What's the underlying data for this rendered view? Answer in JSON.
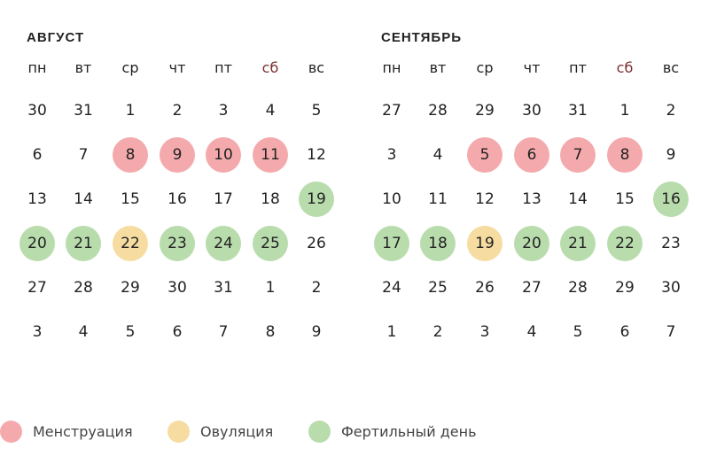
{
  "colors": {
    "menstruation": "#f4aaac",
    "ovulation": "#f6dca1",
    "fertile": "#b9dcad",
    "text": "#222222",
    "saturday": "#7a2e2e"
  },
  "weekdays": [
    "пн",
    "вт",
    "ср",
    "чт",
    "пт",
    "сб",
    "вс"
  ],
  "months": [
    {
      "title": "АВГУСТ",
      "weeks": [
        [
          {
            "d": "30"
          },
          {
            "d": "31"
          },
          {
            "d": "1"
          },
          {
            "d": "2"
          },
          {
            "d": "3"
          },
          {
            "d": "4"
          },
          {
            "d": "5"
          }
        ],
        [
          {
            "d": "6"
          },
          {
            "d": "7"
          },
          {
            "d": "8",
            "t": "menstruation"
          },
          {
            "d": "9",
            "t": "menstruation"
          },
          {
            "d": "10",
            "t": "menstruation"
          },
          {
            "d": "11",
            "t": "menstruation"
          },
          {
            "d": "12"
          }
        ],
        [
          {
            "d": "13"
          },
          {
            "d": "14"
          },
          {
            "d": "15"
          },
          {
            "d": "16"
          },
          {
            "d": "17"
          },
          {
            "d": "18"
          },
          {
            "d": "19",
            "t": "fertile"
          }
        ],
        [
          {
            "d": "20",
            "t": "fertile"
          },
          {
            "d": "21",
            "t": "fertile"
          },
          {
            "d": "22",
            "t": "ovulation"
          },
          {
            "d": "23",
            "t": "fertile"
          },
          {
            "d": "24",
            "t": "fertile"
          },
          {
            "d": "25",
            "t": "fertile"
          },
          {
            "d": "26"
          }
        ],
        [
          {
            "d": "27"
          },
          {
            "d": "28"
          },
          {
            "d": "29"
          },
          {
            "d": "30"
          },
          {
            "d": "31"
          },
          {
            "d": "1"
          },
          {
            "d": "2"
          }
        ],
        [
          {
            "d": "3"
          },
          {
            "d": "4"
          },
          {
            "d": "5"
          },
          {
            "d": "6"
          },
          {
            "d": "7"
          },
          {
            "d": "8"
          },
          {
            "d": "9"
          }
        ]
      ]
    },
    {
      "title": "СЕНТЯБРЬ",
      "weeks": [
        [
          {
            "d": "27"
          },
          {
            "d": "28"
          },
          {
            "d": "29"
          },
          {
            "d": "30"
          },
          {
            "d": "31"
          },
          {
            "d": "1"
          },
          {
            "d": "2"
          }
        ],
        [
          {
            "d": "3"
          },
          {
            "d": "4"
          },
          {
            "d": "5",
            "t": "menstruation"
          },
          {
            "d": "6",
            "t": "menstruation"
          },
          {
            "d": "7",
            "t": "menstruation"
          },
          {
            "d": "8",
            "t": "menstruation"
          },
          {
            "d": "9"
          }
        ],
        [
          {
            "d": "10"
          },
          {
            "d": "11"
          },
          {
            "d": "12"
          },
          {
            "d": "13"
          },
          {
            "d": "14"
          },
          {
            "d": "15"
          },
          {
            "d": "16",
            "t": "fertile"
          }
        ],
        [
          {
            "d": "17",
            "t": "fertile"
          },
          {
            "d": "18",
            "t": "fertile"
          },
          {
            "d": "19",
            "t": "ovulation"
          },
          {
            "d": "20",
            "t": "fertile"
          },
          {
            "d": "21",
            "t": "fertile"
          },
          {
            "d": "22",
            "t": "fertile"
          },
          {
            "d": "23"
          }
        ],
        [
          {
            "d": "24"
          },
          {
            "d": "25"
          },
          {
            "d": "26"
          },
          {
            "d": "27"
          },
          {
            "d": "28"
          },
          {
            "d": "29"
          },
          {
            "d": "30"
          }
        ],
        [
          {
            "d": "1"
          },
          {
            "d": "2"
          },
          {
            "d": "3"
          },
          {
            "d": "4"
          },
          {
            "d": "5"
          },
          {
            "d": "6"
          },
          {
            "d": "7"
          }
        ]
      ]
    }
  ],
  "legend": [
    {
      "type": "menstruation",
      "label": "Менструация"
    },
    {
      "type": "ovulation",
      "label": "Овуляция"
    },
    {
      "type": "fertile",
      "label": "Фертильный день"
    }
  ]
}
